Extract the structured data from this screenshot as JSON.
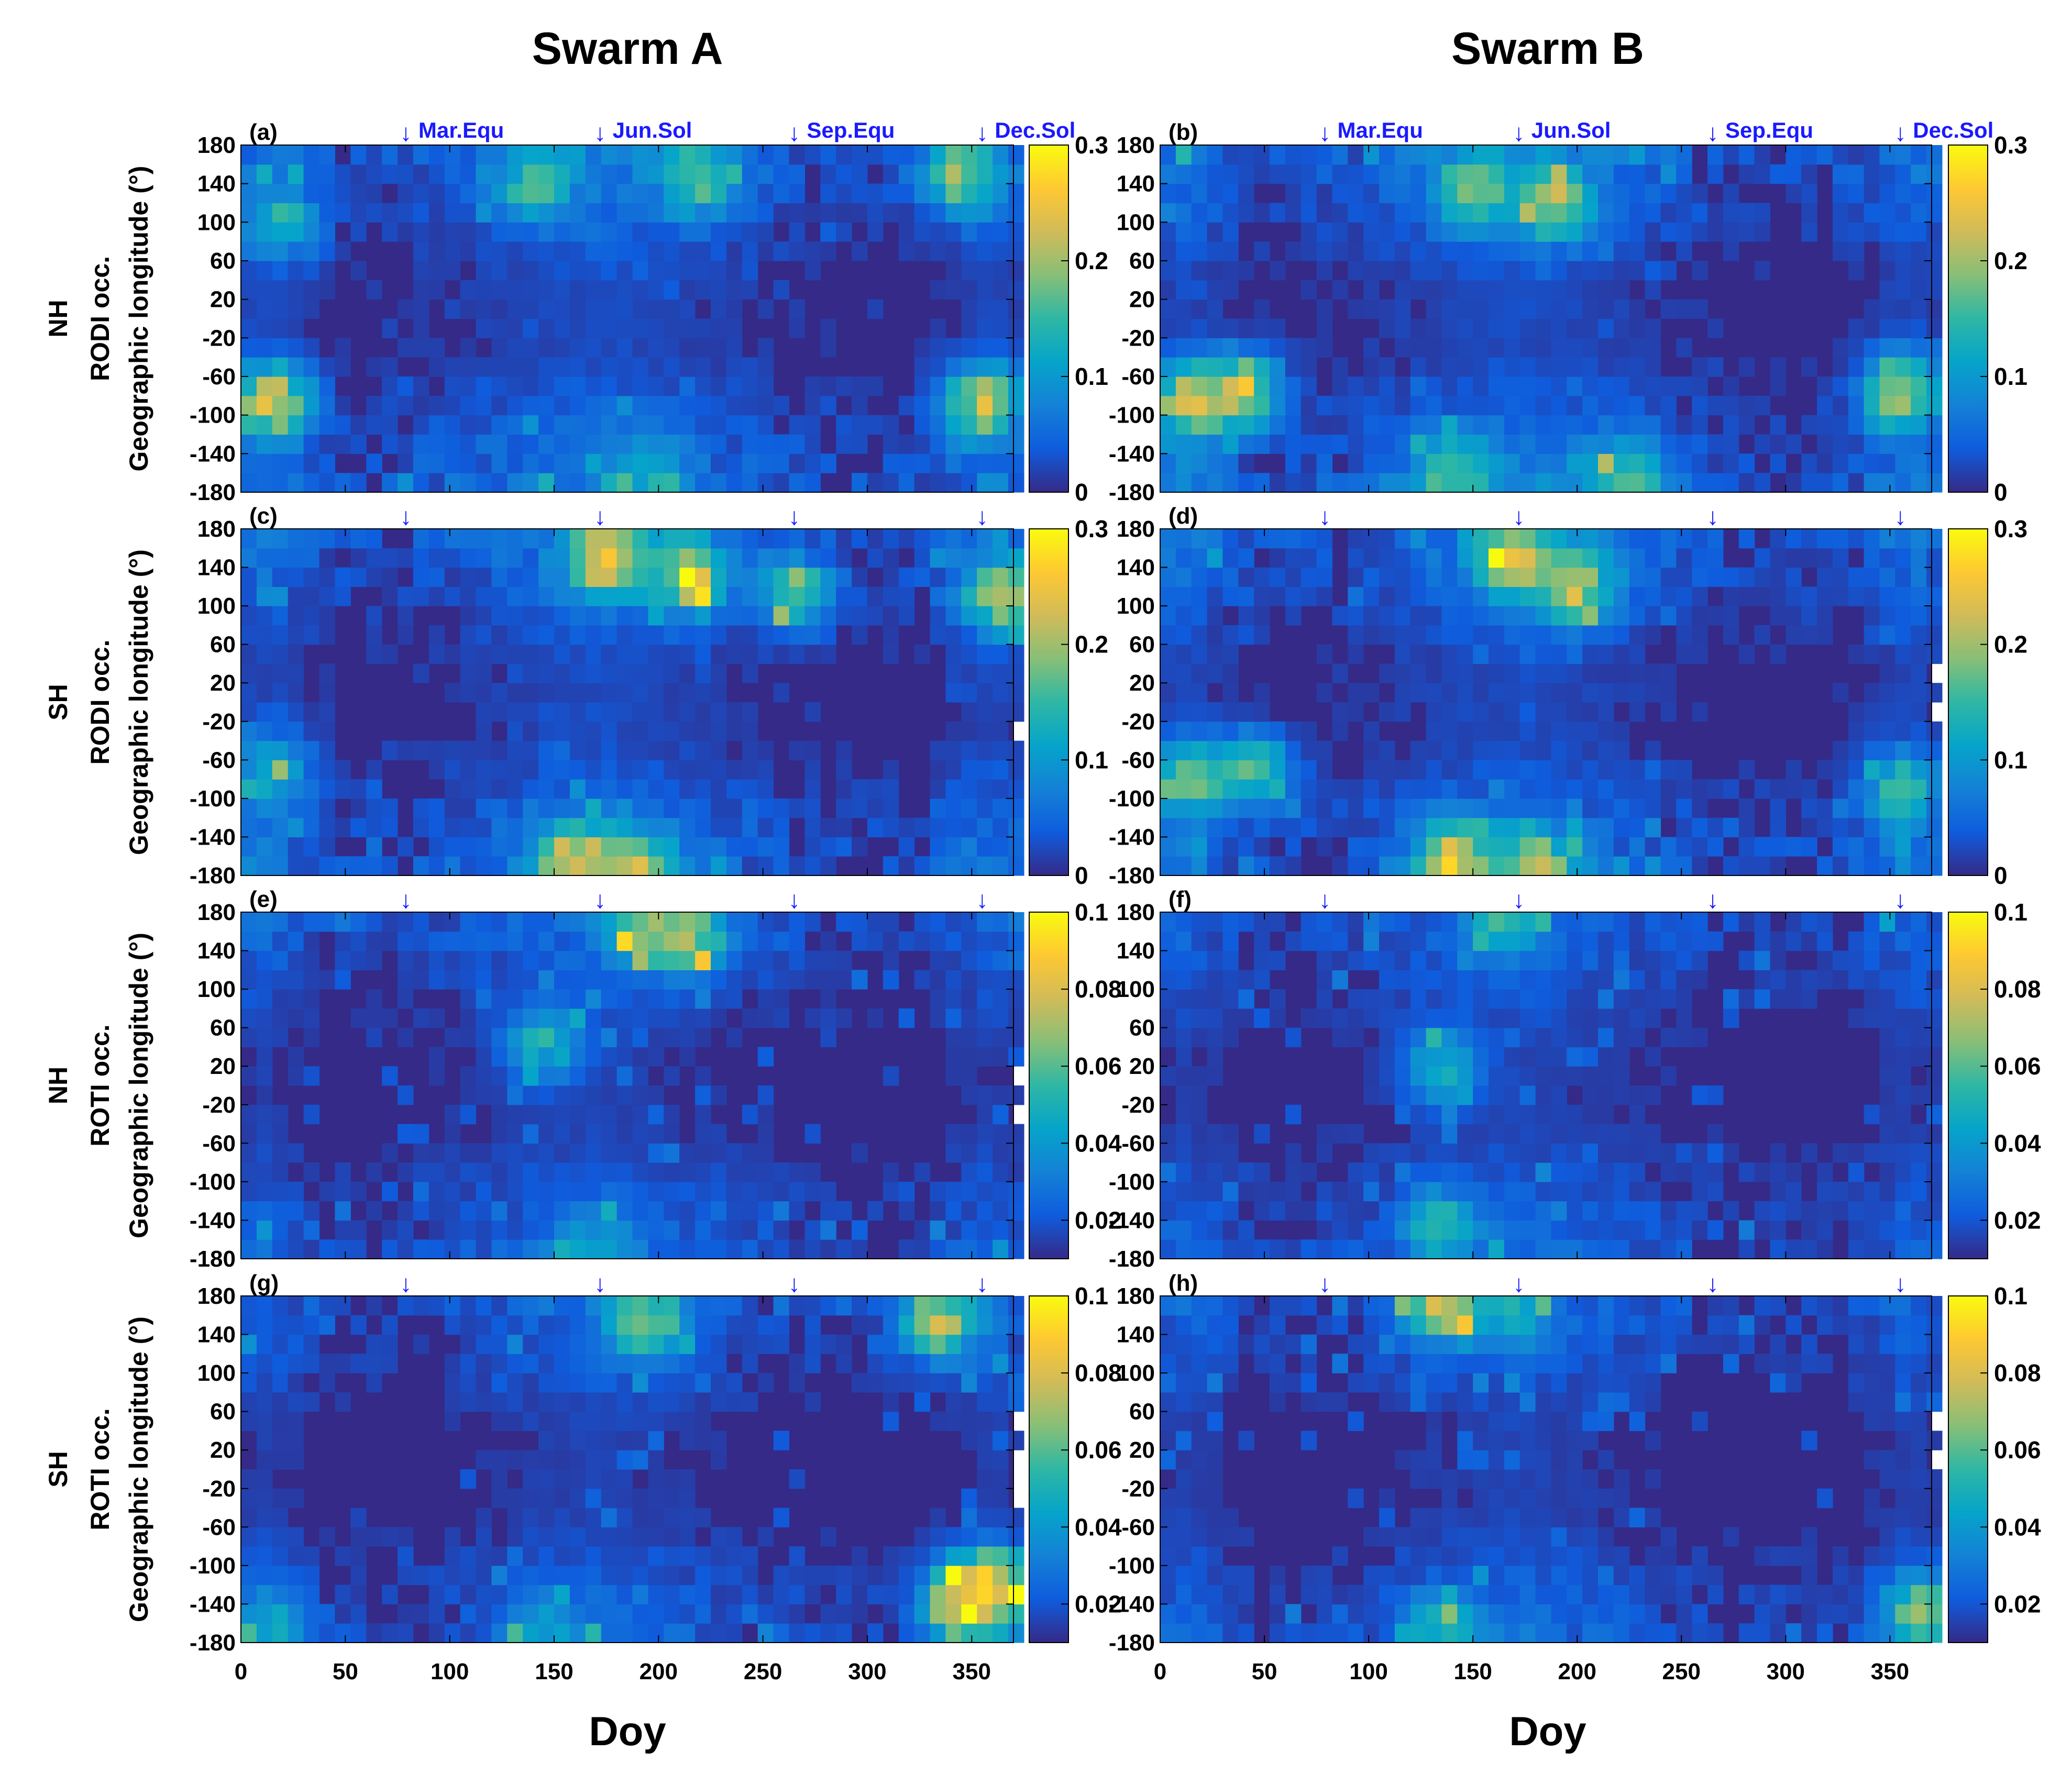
{
  "figure": {
    "columns": [
      "Swarm A",
      "Swarm B"
    ],
    "xlabel": "Doy",
    "colormap": [
      "#352a87",
      "#0f5cdd",
      "#1481d6",
      "#06a4ca",
      "#2eb7a4",
      "#87bf77",
      "#d1bb59",
      "#fec832",
      "#f9fb0e"
    ]
  },
  "chart_data": [
    {
      "panel": "(a)",
      "type": "heatmap",
      "hemisphere": "NH",
      "index": "RODI occ.",
      "ylabel": "Geographic longitude (°)",
      "xlabel": "Doy",
      "xlim": [
        0,
        370
      ],
      "ylim": [
        -180,
        180
      ],
      "xticks": [
        0,
        50,
        100,
        150,
        200,
        250,
        300,
        350
      ],
      "yticks": [
        180,
        140,
        100,
        60,
        20,
        -20,
        -60,
        -100,
        -140,
        -180
      ],
      "clim": [
        0,
        0.3
      ],
      "cbticks": [
        "0.3",
        "0.2",
        "0.1",
        "0"
      ],
      "events": [
        {
          "doy": 79,
          "label": "Mar.Equ"
        },
        {
          "doy": 172,
          "label": "Jun.Sol"
        },
        {
          "doy": 265,
          "label": "Sep.Equ"
        },
        {
          "doy": 355,
          "label": "Dec.Sol"
        }
      ],
      "hotspots": [
        {
          "doy": 15,
          "lon": -85,
          "v": 0.28
        },
        {
          "doy": 20,
          "lon": 100,
          "v": 0.16
        },
        {
          "doy": 195,
          "lon": -155,
          "v": 0.12
        },
        {
          "doy": 220,
          "lon": 145,
          "v": 0.2
        },
        {
          "doy": 345,
          "lon": 150,
          "v": 0.22
        },
        {
          "doy": 355,
          "lon": -85,
          "v": 0.26
        },
        {
          "doy": 140,
          "lon": 140,
          "v": 0.18
        }
      ]
    },
    {
      "panel": "(b)",
      "type": "heatmap",
      "hemisphere": "NH",
      "index": "RODI occ.",
      "ylabel": "Geographic longitude (°)",
      "xlabel": "Doy",
      "xlim": [
        0,
        370
      ],
      "ylim": [
        -180,
        180
      ],
      "xticks": [
        0,
        50,
        100,
        150,
        200,
        250,
        300,
        350
      ],
      "yticks": [
        180,
        140,
        100,
        60,
        20,
        -20,
        -60,
        -100,
        -140,
        -180
      ],
      "clim": [
        0,
        0.3
      ],
      "cbticks": [
        "0.3",
        "0.2",
        "0.1",
        "0"
      ],
      "events": [
        {
          "doy": 79,
          "label": "Mar.Equ"
        },
        {
          "doy": 172,
          "label": "Jun.Sol"
        },
        {
          "doy": 265,
          "label": "Sep.Equ"
        },
        {
          "doy": 355,
          "label": "Dec.Sol"
        }
      ],
      "hotspots": [
        {
          "doy": 15,
          "lon": -85,
          "v": 0.28
        },
        {
          "doy": 40,
          "lon": -75,
          "v": 0.27
        },
        {
          "doy": 150,
          "lon": 130,
          "v": 0.22
        },
        {
          "doy": 190,
          "lon": 120,
          "v": 0.24
        },
        {
          "doy": 140,
          "lon": -160,
          "v": 0.2
        },
        {
          "doy": 355,
          "lon": -75,
          "v": 0.26
        },
        {
          "doy": 225,
          "lon": -165,
          "v": 0.2
        }
      ]
    },
    {
      "panel": "(c)",
      "type": "heatmap",
      "hemisphere": "SH",
      "index": "RODI occ.",
      "ylabel": "Geographic longitude (°)",
      "xlabel": "Doy",
      "xlim": [
        0,
        370
      ],
      "ylim": [
        -180,
        180
      ],
      "xticks": [
        0,
        50,
        100,
        150,
        200,
        250,
        300,
        350
      ],
      "yticks": [
        180,
        140,
        100,
        60,
        20,
        -20,
        -60,
        -100,
        -140,
        -180
      ],
      "clim": [
        0,
        0.3
      ],
      "cbticks": [
        "0.3",
        "0.2",
        "0.1",
        "0"
      ],
      "events": [
        {
          "doy": 79
        },
        {
          "doy": 172
        },
        {
          "doy": 265
        },
        {
          "doy": 355
        }
      ],
      "hotspots": [
        {
          "doy": 175,
          "lon": 150,
          "v": 0.3
        },
        {
          "doy": 215,
          "lon": 130,
          "v": 0.28
        },
        {
          "doy": 160,
          "lon": -165,
          "v": 0.3
        },
        {
          "doy": 190,
          "lon": -170,
          "v": 0.25
        },
        {
          "doy": 265,
          "lon": 115,
          "v": 0.22
        },
        {
          "doy": 365,
          "lon": 110,
          "v": 0.26
        },
        {
          "doy": 15,
          "lon": -70,
          "v": 0.15
        }
      ]
    },
    {
      "panel": "(d)",
      "type": "heatmap",
      "hemisphere": "SH",
      "index": "RODI occ.",
      "ylabel": "Geographic longitude (°)",
      "xlabel": "Doy",
      "xlim": [
        0,
        370
      ],
      "ylim": [
        -180,
        180
      ],
      "xticks": [
        0,
        50,
        100,
        150,
        200,
        250,
        300,
        350
      ],
      "yticks": [
        180,
        140,
        100,
        60,
        20,
        -20,
        -60,
        -100,
        -140,
        -180
      ],
      "clim": [
        0,
        0.3
      ],
      "cbticks": [
        "0.3",
        "0.2",
        "0.1",
        "0"
      ],
      "events": [
        {
          "doy": 79
        },
        {
          "doy": 172
        },
        {
          "doy": 265
        },
        {
          "doy": 355
        }
      ],
      "hotspots": [
        {
          "doy": 170,
          "lon": 150,
          "v": 0.3
        },
        {
          "doy": 200,
          "lon": 120,
          "v": 0.26
        },
        {
          "doy": 140,
          "lon": -165,
          "v": 0.28
        },
        {
          "doy": 180,
          "lon": -170,
          "v": 0.24
        },
        {
          "doy": 15,
          "lon": -80,
          "v": 0.22
        },
        {
          "doy": 45,
          "lon": -70,
          "v": 0.2
        },
        {
          "doy": 355,
          "lon": -90,
          "v": 0.18
        }
      ]
    },
    {
      "panel": "(e)",
      "type": "heatmap",
      "hemisphere": "NH",
      "index": "ROTI occ.",
      "ylabel": "Geographic longitude (°)",
      "xlabel": "Doy",
      "xlim": [
        0,
        370
      ],
      "ylim": [
        -180,
        180
      ],
      "xticks": [
        0,
        50,
        100,
        150,
        200,
        250,
        300,
        350
      ],
      "yticks": [
        180,
        140,
        100,
        60,
        20,
        -20,
        -60,
        -100,
        -140,
        -180
      ],
      "clim": [
        0.01,
        0.1
      ],
      "cbticks": [
        "0.1",
        "0.08",
        "0.06",
        "0.04",
        "0.02"
      ],
      "events": [
        {
          "doy": 79
        },
        {
          "doy": 172
        },
        {
          "doy": 265
        },
        {
          "doy": 355
        }
      ],
      "hotspots": [
        {
          "doy": 195,
          "lon": 165,
          "v": 0.08
        },
        {
          "doy": 215,
          "lon": 155,
          "v": 0.08
        },
        {
          "doy": 170,
          "lon": -170,
          "v": 0.05
        },
        {
          "doy": 145,
          "lon": 45,
          "v": 0.06
        }
      ]
    },
    {
      "panel": "(f)",
      "type": "heatmap",
      "hemisphere": "NH",
      "index": "ROTI occ.",
      "ylabel": "Geographic longitude (°)",
      "xlabel": "Doy",
      "xlim": [
        0,
        370
      ],
      "ylim": [
        -180,
        180
      ],
      "xticks": [
        0,
        50,
        100,
        150,
        200,
        250,
        300,
        350
      ],
      "yticks": [
        180,
        140,
        100,
        60,
        20,
        -20,
        -60,
        -100,
        -140,
        -180
      ],
      "clim": [
        0.01,
        0.1
      ],
      "cbticks": [
        "0.1",
        "0.08",
        "0.06",
        "0.04",
        "0.02"
      ],
      "events": [
        {
          "doy": 79
        },
        {
          "doy": 172
        },
        {
          "doy": 265
        },
        {
          "doy": 355
        }
      ],
      "hotspots": [
        {
          "doy": 135,
          "lon": 20,
          "v": 0.06
        },
        {
          "doy": 135,
          "lon": -145,
          "v": 0.06
        },
        {
          "doy": 165,
          "lon": 175,
          "v": 0.06
        }
      ]
    },
    {
      "panel": "(g)",
      "type": "heatmap",
      "hemisphere": "SH",
      "index": "ROTI occ.",
      "ylabel": "Geographic longitude (°)",
      "xlabel": "Doy",
      "xlim": [
        0,
        370
      ],
      "ylim": [
        -180,
        180
      ],
      "xticks": [
        0,
        50,
        100,
        150,
        200,
        250,
        300,
        350
      ],
      "yticks": [
        180,
        140,
        100,
        60,
        20,
        -20,
        -60,
        -100,
        -140,
        -180
      ],
      "clim": [
        0.01,
        0.1
      ],
      "cbticks": [
        "0.1",
        "0.08",
        "0.06",
        "0.04",
        "0.02"
      ],
      "events": [
        {
          "doy": 79
        },
        {
          "doy": 172
        },
        {
          "doy": 265
        },
        {
          "doy": 355
        }
      ],
      "hotspots": [
        {
          "doy": 195,
          "lon": 155,
          "v": 0.08
        },
        {
          "doy": 335,
          "lon": 155,
          "v": 0.09
        },
        {
          "doy": 345,
          "lon": -140,
          "v": 0.1
        },
        {
          "doy": 360,
          "lon": -120,
          "v": 0.1
        },
        {
          "doy": 15,
          "lon": -160,
          "v": 0.05
        },
        {
          "doy": 145,
          "lon": -170,
          "v": 0.05
        }
      ]
    },
    {
      "panel": "(h)",
      "type": "heatmap",
      "hemisphere": "SH",
      "index": "ROTI occ.",
      "ylabel": "Geographic longitude (°)",
      "xlabel": "Doy",
      "xlim": [
        0,
        370
      ],
      "ylim": [
        -180,
        180
      ],
      "xticks": [
        0,
        50,
        100,
        150,
        200,
        250,
        300,
        350
      ],
      "yticks": [
        180,
        140,
        100,
        60,
        20,
        -20,
        -60,
        -100,
        -140,
        -180
      ],
      "clim": [
        0.01,
        0.1
      ],
      "cbticks": [
        "0.1",
        "0.08",
        "0.06",
        "0.04",
        "0.02"
      ],
      "events": [
        {
          "doy": 79
        },
        {
          "doy": 172
        },
        {
          "doy": 265
        },
        {
          "doy": 355
        }
      ],
      "hotspots": [
        {
          "doy": 135,
          "lon": 170,
          "v": 0.09
        },
        {
          "doy": 170,
          "lon": 170,
          "v": 0.06
        },
        {
          "doy": 135,
          "lon": -165,
          "v": 0.06
        },
        {
          "doy": 365,
          "lon": -150,
          "v": 0.08
        }
      ]
    }
  ]
}
